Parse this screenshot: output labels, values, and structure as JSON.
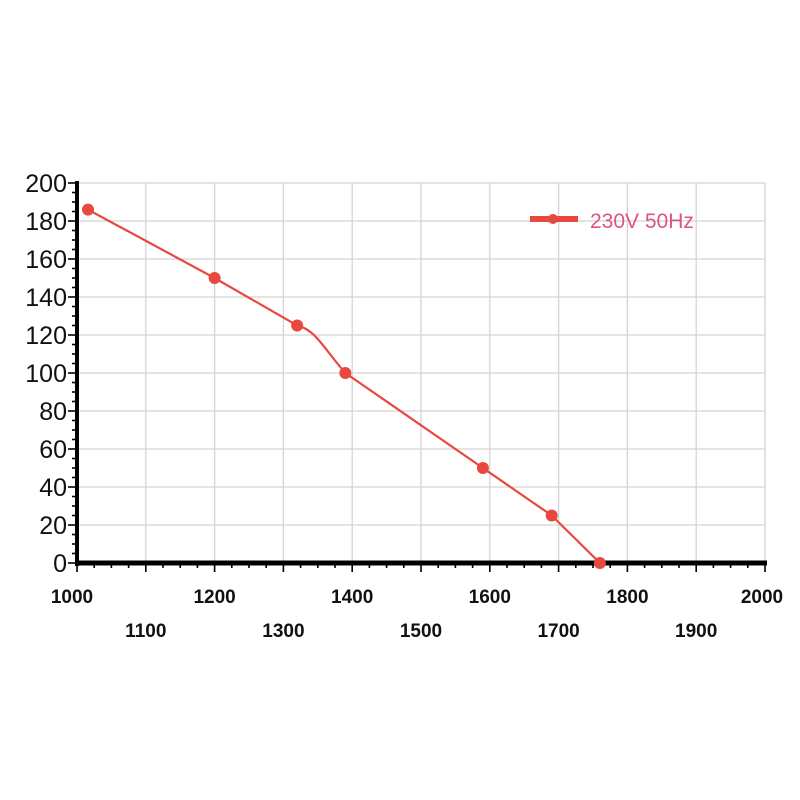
{
  "chart_data": {
    "type": "line",
    "title": "",
    "xlabel": "",
    "ylabel": "",
    "xlim": [
      1000,
      2000
    ],
    "ylim": [
      0,
      200
    ],
    "x_ticks_upper": [
      "1000",
      "1200",
      "1400",
      "1600",
      "1800",
      "2000"
    ],
    "x_ticks_lower": [
      "1100",
      "1300",
      "1500",
      "1700",
      "1900"
    ],
    "y_ticks": [
      "0",
      "20",
      "40",
      "60",
      "80",
      "100",
      "120",
      "140",
      "160",
      "180",
      "200"
    ],
    "grid": true,
    "legend_position": "top-right",
    "series": [
      {
        "name": "230V 50Hz",
        "color": "#e8483e",
        "x": [
          1016,
          1200,
          1320,
          1390,
          1590,
          1690,
          1760
        ],
        "y": [
          186,
          150,
          125,
          100,
          50,
          25,
          0
        ]
      }
    ]
  }
}
